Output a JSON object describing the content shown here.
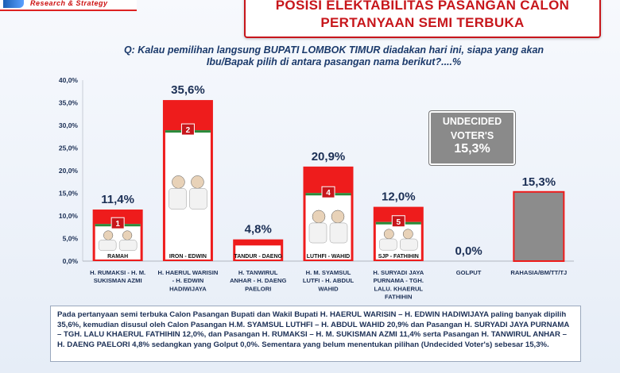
{
  "logo_text": "Research & Strategy",
  "title_lines": [
    "POSISI ELEKTABILITAS PASANGAN CALON",
    "PERTANYAAN SEMI TERBUKA"
  ],
  "question_lines": [
    "Q: Kalau pemilihan langsung BUPATI LOMBOK TIMUR diadakan hari ini, siapa yang akan",
    "Ibu/Bapak pilih di antara pasangan nama berikut?....%"
  ],
  "undecided": {
    "label_lines": [
      "UNDECIDED",
      "VOTER'S"
    ],
    "value": "15,3%"
  },
  "colors": {
    "primary": "#e8211f",
    "bar_gray": "#8c8c8c",
    "bar_red": "#ee1c1c",
    "title_red": "#c7161b"
  },
  "chart_data": {
    "type": "bar",
    "ylim": [
      0,
      40
    ],
    "yticks": [
      "0,0%",
      "5,0%",
      "10,0%",
      "15,0%",
      "20,0%",
      "25,0%",
      "30,0%",
      "35,0%",
      "40,0%"
    ],
    "categories": [
      [
        "H. RUMAKSI - H. M.",
        "SUKISMAN AZMI"
      ],
      [
        "H. HAERUL WARISIN",
        "- H. EDWIN",
        "HADIWIJAYA"
      ],
      [
        "H. TANWIRUL",
        "ANHAR - H. DAENG",
        "PAELORI"
      ],
      [
        "H. M. SYAMSUL",
        "LUTFI - H. ABDUL",
        "WAHID"
      ],
      [
        "H. SURYADI JAYA",
        "PURNAMA - TGH.",
        "LALU. KHAERUL",
        "FATHIHIN"
      ],
      [
        "GOLPUT"
      ],
      [
        "RAHASIA/BM/TT/TJ"
      ]
    ],
    "values": [
      11.4,
      35.6,
      4.8,
      20.9,
      12.0,
      0.0,
      15.3
    ],
    "value_labels": [
      "11,4%",
      "35,6%",
      "4,8%",
      "20,9%",
      "12,0%",
      "0,0%",
      "15,3%"
    ],
    "ballot_numbers": [
      "1",
      "2",
      "",
      "4",
      "5",
      "",
      ""
    ],
    "poster_captions": [
      "RAMAH",
      "IRON - EDWIN",
      "TANDUR - DAENG",
      "LUTHFI - WAHID",
      "SJP - FATHIHIN",
      "",
      ""
    ]
  },
  "footer_text": "Pada pertanyaan semi terbuka Calon Pasangan Bupati dan Wakil Bupati H. HAERUL WARISIN – H. EDWIN HADIWIJAYA paling banyak dipilih 35,6%, kemudian disusul oleh Calon Pasangan H.M. SYAMSUL LUTHFI – H. ABDUL WAHID 20,9% dan Pasangan H. SURYADI JAYA PURNAMA – TGH. LALU KHAERUL FATHIHIN 12,0%, dan Pasangan H. RUMAKSI – H. M. SUKISMAN AZMI 11,4% serta Pasangan H. TANWIRUL ANHAR – H. DAENG PAELORI 4,8% sedangkan yang Golput 0,0%. Sementara yang belum menentukan pilihan (Undecided Voter's) sebesar 15,3%."
}
